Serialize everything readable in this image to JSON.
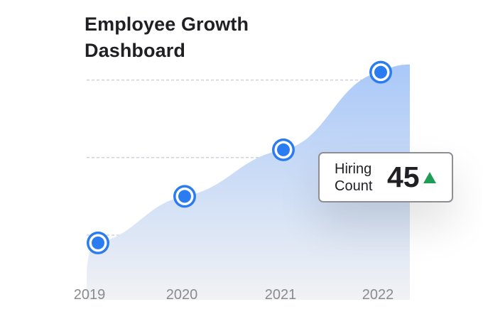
{
  "title_line1": "Employee Growth",
  "title_line2": "Dashboard",
  "tooltip": {
    "label_line1": "Hiring",
    "label_line2": "Count",
    "value": "45",
    "trend": "up",
    "trend_color": "#1e9e55"
  },
  "colors": {
    "point": "#2b7cf0",
    "area_top": "#a9c8f8",
    "area_bottom": "#f1f2f4",
    "gridline": "#cfd3d9",
    "tick_label": "#8a8a8f"
  },
  "chart_data": {
    "type": "area",
    "x": [
      "2019",
      "2020",
      "2021",
      "2022"
    ],
    "series": [
      {
        "values": [
          22,
          40,
          58,
          88
        ]
      }
    ],
    "ylim": [
      0,
      100
    ],
    "grid": true,
    "gridlines": [
      25,
      55,
      85
    ]
  }
}
